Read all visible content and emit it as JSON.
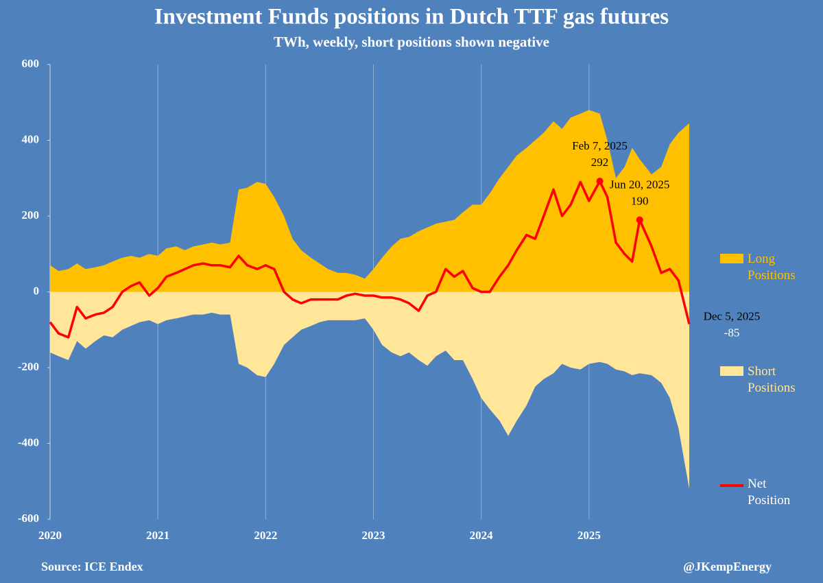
{
  "chart_data": {
    "type": "area",
    "title": "Investment Funds positions in Dutch TTF gas futures",
    "subtitle": "TWh, weekly, short positions shown negative",
    "source": "Source: ICE Endex",
    "credit": "@JKempEnergy",
    "x": [
      2020,
      2020.08,
      2020.17,
      2020.25,
      2020.33,
      2020.42,
      2020.5,
      2020.58,
      2020.67,
      2020.75,
      2020.83,
      2020.92,
      2021,
      2021.08,
      2021.17,
      2021.25,
      2021.33,
      2021.42,
      2021.5,
      2021.58,
      2021.67,
      2021.75,
      2021.83,
      2021.92,
      2022,
      2022.08,
      2022.17,
      2022.25,
      2022.33,
      2022.42,
      2022.5,
      2022.58,
      2022.67,
      2022.75,
      2022.83,
      2022.92,
      2023,
      2023.08,
      2023.17,
      2023.25,
      2023.33,
      2023.42,
      2023.5,
      2023.58,
      2023.67,
      2023.75,
      2023.83,
      2023.92,
      2024,
      2024.08,
      2024.17,
      2024.25,
      2024.33,
      2024.42,
      2024.5,
      2024.58,
      2024.67,
      2024.75,
      2024.83,
      2024.92,
      2025,
      2025.1,
      2025.17,
      2025.25,
      2025.33,
      2025.4,
      2025.47,
      2025.58,
      2025.67,
      2025.75,
      2025.83,
      2025.93
    ],
    "series": [
      {
        "name": "Long Positions",
        "color": "#ffc000",
        "values": [
          70,
          55,
          60,
          75,
          60,
          65,
          70,
          80,
          90,
          95,
          90,
          100,
          95,
          115,
          120,
          110,
          120,
          125,
          130,
          125,
          130,
          270,
          275,
          290,
          285,
          250,
          200,
          140,
          110,
          90,
          75,
          60,
          50,
          50,
          45,
          35,
          60,
          90,
          120,
          140,
          145,
          160,
          170,
          180,
          185,
          190,
          210,
          230,
          230,
          260,
          300,
          330,
          360,
          380,
          400,
          420,
          450,
          430,
          460,
          470,
          480,
          470,
          400,
          300,
          330,
          380,
          350,
          310,
          330,
          390,
          420,
          445
        ]
      },
      {
        "name": "Short Positions",
        "color": "#ffe699",
        "values": [
          -160,
          -170,
          -180,
          -130,
          -150,
          -130,
          -115,
          -120,
          -100,
          -90,
          -80,
          -75,
          -85,
          -75,
          -70,
          -65,
          -60,
          -60,
          -55,
          -60,
          -60,
          -190,
          -200,
          -220,
          -225,
          -190,
          -140,
          -120,
          -100,
          -90,
          -80,
          -75,
          -75,
          -75,
          -75,
          -70,
          -100,
          -140,
          -160,
          -170,
          -160,
          -180,
          -195,
          -170,
          -155,
          -180,
          -180,
          -230,
          -280,
          -310,
          -340,
          -380,
          -340,
          -300,
          -250,
          -230,
          -215,
          -190,
          -200,
          -205,
          -190,
          -185,
          -190,
          -205,
          -210,
          -220,
          -215,
          -220,
          -240,
          -280,
          -360,
          -520
        ]
      },
      {
        "name": "Net Position",
        "color": "#ff0000",
        "line": true,
        "values": [
          -80,
          -110,
          -120,
          -40,
          -70,
          -60,
          -55,
          -40,
          0,
          15,
          25,
          -10,
          10,
          40,
          50,
          60,
          70,
          75,
          70,
          70,
          65,
          95,
          70,
          60,
          70,
          60,
          0,
          -20,
          -30,
          -20,
          -20,
          -20,
          -20,
          -10,
          -5,
          -10,
          -10,
          -15,
          -15,
          -20,
          -30,
          -50,
          -10,
          0,
          60,
          40,
          55,
          10,
          0,
          0,
          40,
          70,
          110,
          150,
          140,
          200,
          270,
          200,
          230,
          290,
          240,
          292,
          250,
          130,
          100,
          80,
          190,
          120,
          50,
          60,
          30,
          -85
        ]
      }
    ],
    "annotations": [
      {
        "date": "Feb 7, 2025",
        "value": 292,
        "x": 2025.1
      },
      {
        "date": "Jun 20, 2025",
        "value": 190,
        "x": 2025.47
      },
      {
        "date": "Dec 5, 2025",
        "value": -85,
        "x": 2025.93
      }
    ],
    "xlim": [
      2020,
      2025.93
    ],
    "xticks": [
      2020,
      2021,
      2022,
      2023,
      2024,
      2025
    ],
    "ylim": [
      -600,
      600
    ],
    "yticks": [
      -600,
      -400,
      -200,
      0,
      200,
      400,
      600
    ],
    "grid": true
  }
}
